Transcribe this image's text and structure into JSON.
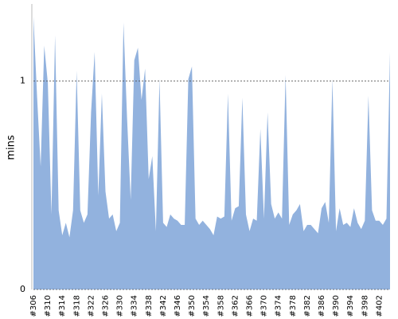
{
  "chart_data": {
    "type": "area",
    "y_label": "mins",
    "color": "#92b2de",
    "categories": [
      "#306",
      null,
      null,
      null,
      "#310",
      null,
      null,
      null,
      "#314",
      null,
      null,
      null,
      "#318",
      null,
      null,
      null,
      "#322",
      null,
      null,
      null,
      "#326",
      null,
      null,
      null,
      "#330",
      null,
      null,
      null,
      "#334",
      null,
      null,
      null,
      "#338",
      null,
      null,
      null,
      "#342",
      null,
      null,
      null,
      "#346",
      null,
      null,
      null,
      "#350",
      null,
      null,
      null,
      "#354",
      null,
      null,
      null,
      "#358",
      null,
      null,
      null,
      "#362",
      null,
      null,
      null,
      "#366",
      null,
      null,
      null,
      "#370",
      null,
      null,
      null,
      "#374",
      null,
      null,
      null,
      "#378",
      null,
      null,
      null,
      "#382",
      null,
      null,
      null,
      "#386",
      null,
      null,
      null,
      "#390",
      null,
      null,
      null,
      "#394",
      null,
      null,
      null,
      "#398",
      null,
      null,
      null,
      "#402",
      null,
      null,
      null
    ],
    "values": [
      1.31,
      0.93,
      0.59,
      1.17,
      0.99,
      0.36,
      1.22,
      0.38,
      0.26,
      0.32,
      0.25,
      0.38,
      1.05,
      0.38,
      0.32,
      0.36,
      0.85,
      1.14,
      0.45,
      0.94,
      0.47,
      0.34,
      0.36,
      0.28,
      0.32,
      1.28,
      0.82,
      0.43,
      1.1,
      1.16,
      0.91,
      1.06,
      0.53,
      0.64,
      0.28,
      1.01,
      0.32,
      0.3,
      0.36,
      0.34,
      0.33,
      0.31,
      0.31,
      1.01,
      1.07,
      0.34,
      0.31,
      0.33,
      0.31,
      0.29,
      0.26,
      0.35,
      0.34,
      0.35,
      0.94,
      0.33,
      0.39,
      0.4,
      0.92,
      0.36,
      0.28,
      0.34,
      0.33,
      0.77,
      0.34,
      0.85,
      0.41,
      0.34,
      0.37,
      0.34,
      1.03,
      0.31,
      0.36,
      0.38,
      0.41,
      0.28,
      0.31,
      0.31,
      0.29,
      0.27,
      0.39,
      0.42,
      0.32,
      1.01,
      0.28,
      0.39,
      0.31,
      0.32,
      0.3,
      0.39,
      0.32,
      0.29,
      0.33,
      0.93,
      0.38,
      0.33,
      0.33,
      0.31,
      0.34,
      1.14
    ],
    "ylim": [
      0,
      1.37
    ],
    "yticks": [
      0,
      1
    ],
    "grid": true
  }
}
